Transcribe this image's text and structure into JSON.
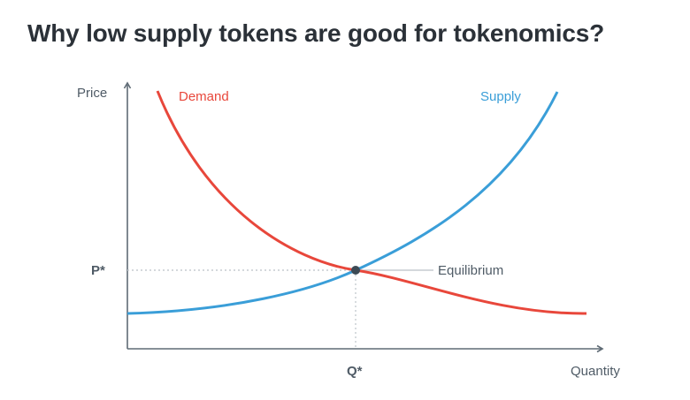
{
  "title": "Why low supply tokens are good for tokenomics?",
  "axes": {
    "y_label": "Price",
    "x_label": "Quantity",
    "price_marker": "P*",
    "quantity_marker": "Q*"
  },
  "curves": {
    "demand": {
      "label": "Demand",
      "color": "#e8473b"
    },
    "supply": {
      "label": "Supply",
      "color": "#3a9ed8"
    }
  },
  "equilibrium": {
    "label": "Equilibrium",
    "point_color": "#3c4a55"
  },
  "colors": {
    "axis": "#5f6b75",
    "guide": "#c6ccd1",
    "text": "#4f5b66"
  }
}
